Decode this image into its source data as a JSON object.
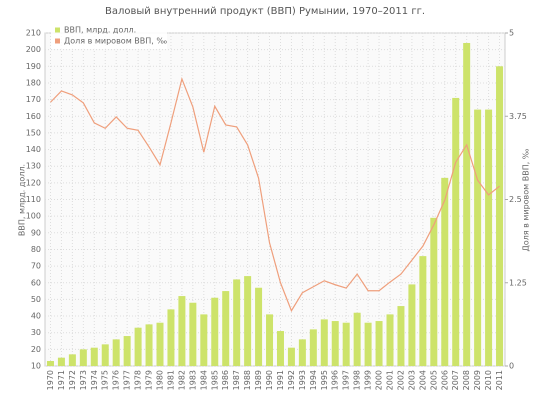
{
  "chart_data": {
    "type": "bar",
    "title": "Валовый внутренний продукт (ВВП) Румынии, 1970–2011 гг.",
    "y_label": "ВВП, млрд. долл.",
    "y2_label": "Доля в мировом ВВП, ‰",
    "categories": [
      "1970",
      "1971",
      "1972",
      "1973",
      "1974",
      "1975",
      "1976",
      "1977",
      "1978",
      "1979",
      "1980",
      "1981",
      "1982",
      "1983",
      "1984",
      "1985",
      "1986",
      "1987",
      "1988",
      "1989",
      "1990",
      "1991",
      "1992",
      "1993",
      "1994",
      "1995",
      "1996",
      "1997",
      "1998",
      "1999",
      "2000",
      "2001",
      "2002",
      "2003",
      "2004",
      "2005",
      "2006",
      "2007",
      "2008",
      "2009",
      "2010",
      "2011"
    ],
    "series": [
      {
        "name": "ВВП, млрд. долл.",
        "color": "#cde36a",
        "values": [
          13,
          15,
          17,
          20,
          21,
          23,
          26,
          28,
          33,
          35,
          36,
          44,
          52,
          48,
          41,
          51,
          55,
          62,
          64,
          57,
          41,
          31,
          21,
          26,
          32,
          38,
          37,
          36,
          42,
          36,
          37,
          41,
          46,
          59,
          76,
          99,
          123,
          171,
          204,
          164,
          164,
          190
        ]
      },
      {
        "name": "Доля в мировом ВВП, ‰",
        "color": "#ef9f7c",
        "axis": "y2",
        "values": [
          3.96,
          4.13,
          4.07,
          3.95,
          3.65,
          3.57,
          3.74,
          3.57,
          3.54,
          3.29,
          3.02,
          3.65,
          4.31,
          3.89,
          3.21,
          3.9,
          3.62,
          3.59,
          3.32,
          2.82,
          1.85,
          1.25,
          0.83,
          1.1,
          1.19,
          1.28,
          1.22,
          1.17,
          1.38,
          1.13,
          1.13,
          1.26,
          1.38,
          1.59,
          1.8,
          2.12,
          2.49,
          3.06,
          3.32,
          2.79,
          2.57,
          2.7
        ]
      }
    ],
    "ylim": [
      10,
      210
    ],
    "yticks": [
      10,
      20,
      30,
      40,
      50,
      60,
      70,
      80,
      90,
      100,
      110,
      120,
      130,
      140,
      150,
      160,
      170,
      180,
      190,
      200,
      210
    ],
    "y2lim": [
      0,
      5
    ],
    "y2ticks": [
      0,
      1.25,
      2.5,
      3.75,
      5
    ],
    "grid": true,
    "legend": "top-left"
  }
}
